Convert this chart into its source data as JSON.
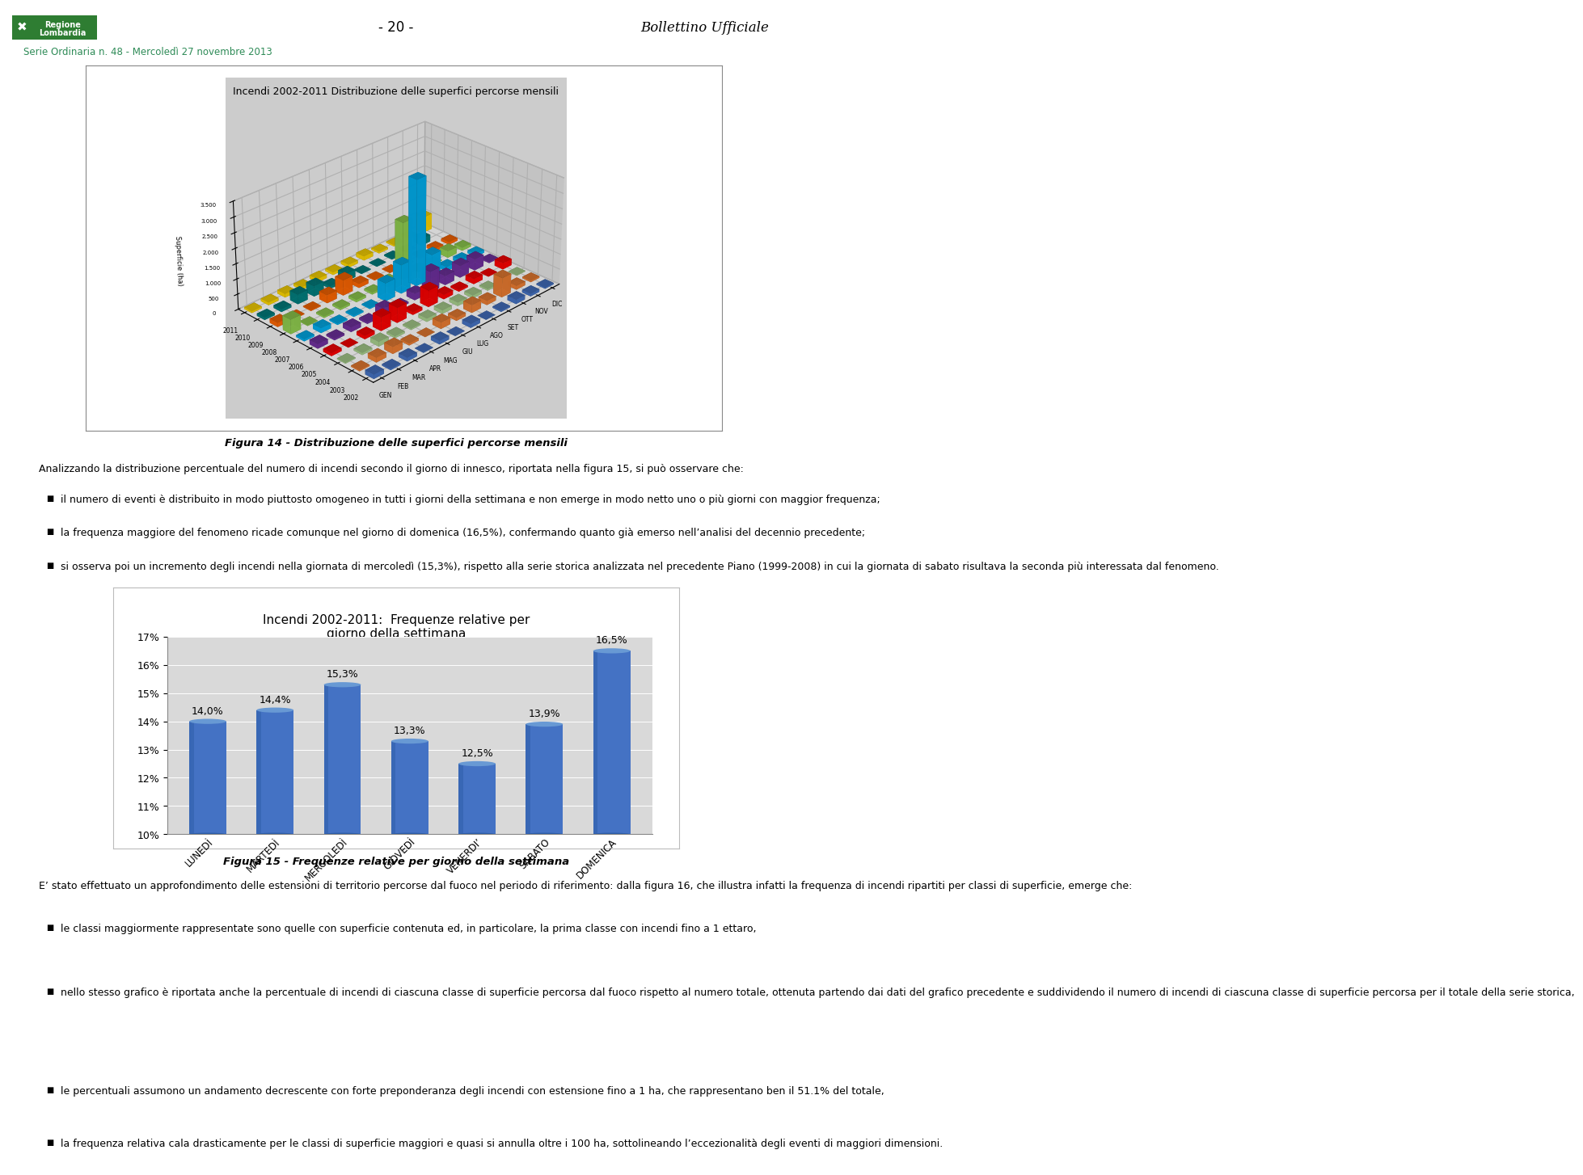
{
  "title_fig15": "Incendi 2002-2011:  Frequenze relative per\ngiorno della settimana",
  "title_fig14": "Incendi 2002-2011 Distribuzione delle superfici percorse mensili",
  "categories": [
    "LUNEDÌ",
    "MARTEDÌ",
    "MERCOLEDÌ",
    "GIOVEDÌ",
    "VENERDI’",
    "SABATO",
    "DOMENICA"
  ],
  "values": [
    14.0,
    14.4,
    15.3,
    13.3,
    12.5,
    13.9,
    16.5
  ],
  "labels": [
    "14,0%",
    "14,4%",
    "15,3%",
    "13,3%",
    "12,5%",
    "13,9%",
    "16,5%"
  ],
  "bar_color_main": "#4472C4",
  "bar_color_light": "#6FA0D8",
  "bar_color_dark": "#2E5EA8",
  "chart_bg": "#D9D9D9",
  "ylim": [
    10,
    17
  ],
  "yticks": [
    10,
    11,
    12,
    13,
    14,
    15,
    16,
    17
  ],
  "page_title_center": "- 20 -",
  "page_title_right": "Bollettino Ufficiale",
  "page_subtitle": "Serie Ordinaria n. 48 - Mercoledì 27 novembre 2013",
  "caption_fig14": "Figura 14 - Distribuzione delle superfici percorse mensili",
  "caption_fig15": "Figura 15 - Frequenze relative per giorno della settimana",
  "body_text_1": "Analizzando la distribuzione percentuale del numero di incendi secondo il giorno di innesco, riportata nella figura 15, si può osservare che:",
  "bullet_1": "il numero di eventi è distribuito in modo piuttosto omogeneo in tutti i giorni della settimana e non emerge in modo netto uno o più giorni con maggior frequenza;",
  "bullet_2": "la frequenza maggiore del fenomeno ricade comunque nel giorno di domenica (16,5%), confermando quanto già emerso nell’analisi del decennio precedente;",
  "bullet_3": "si osserva poi un incremento degli incendi nella giornata di mercoledì (15,3%), rispetto alla serie storica analizzata nel precedente Piano (1999-2008) in cui la giornata di sabato risultava la seconda più interessata dal fenomeno.",
  "body_text_2": "E’ stato effettuato un approfondimento delle estensioni di territorio percorse dal fuoco nel periodo di riferimento: dalla figura 16, che illustra infatti la frequenza di incendi ripartiti per classi di superficie, emerge che:",
  "bullet_4": "le classi maggiormente rappresentate sono quelle con superficie contenuta ed, in particolare, la prima classe con incendi fino a 1 ettaro,",
  "bullet_5": "nello stesso grafico è riportata anche la percentuale di incendi di ciascuna classe di superficie percorsa dal fuoco rispetto al numero totale, ottenuta partendo dai dati del grafico precedente e suddividendo il numero di incendi di ciascuna classe di superficie percorsa per il totale della serie storica,",
  "bullet_6": "le percentuali assumono un andamento decrescente con forte preponderanza degli incendi con estensione fino a 1 ha, che rappresentano ben il 51.1% del totale,",
  "bullet_7": "la frequenza relativa cala drasticamente per le classi di superficie maggiori e quasi si annulla oltre i 100 ha, sottolineando l’eccezionalità degli eventi di maggiori dimensioni.",
  "months": [
    "GEN",
    "FEB",
    "MAR",
    "APR",
    "MAG",
    "GIU",
    "LUG",
    "AGO",
    "SET",
    "OTT",
    "NOV",
    "DIC"
  ],
  "years": [
    "2002",
    "2003",
    "2004",
    "2005",
    "2006",
    "2007",
    "2008",
    "2009",
    "2010",
    "2011"
  ],
  "bar_colors_3d": [
    "#7F7FBF",
    "#FF99CC",
    "#99CCFF",
    "#FF9966",
    "#CC99FF",
    "#66CCCC",
    "#99CC99",
    "#CC6666",
    "#CC99CC",
    "#FFCC66",
    "#99CCCC",
    "#FF6699"
  ],
  "spike_month": 6,
  "spike_year": 4,
  "spike2_month": 6,
  "spike2_year": 5
}
